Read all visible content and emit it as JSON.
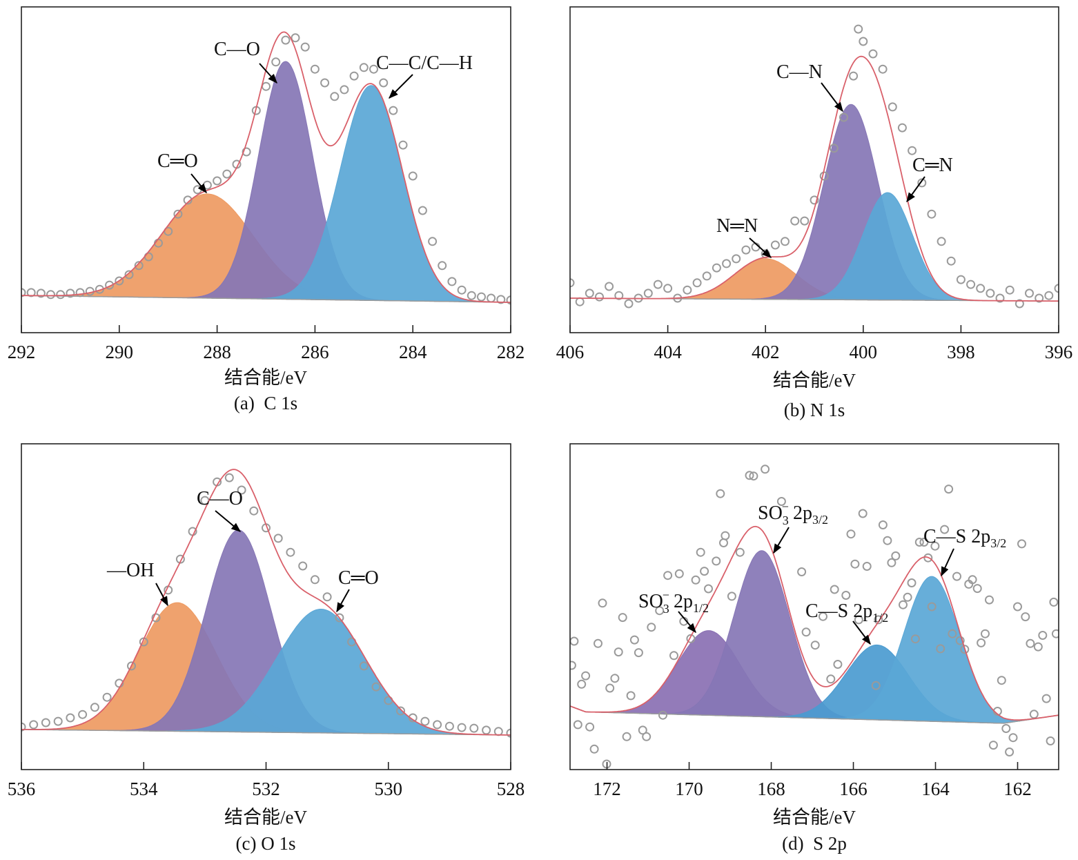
{
  "colors": {
    "orange": "#EE9A62",
    "purple": "#8676B5",
    "blue": "#5AA7D6",
    "envelope": "#D9606A",
    "points": "#9A9A9A"
  },
  "chart_data": [
    {
      "type": "scatter+area",
      "caption": "(a)  C 1s",
      "xlabel": "结合能/eV",
      "xlim": [
        292,
        282
      ],
      "ylim": [
        0,
        100
      ],
      "xticks": [
        292,
        290,
        288,
        286,
        284,
        282
      ],
      "yaxis": "no ticks, arbitrary intensity",
      "grid": false,
      "baseline": [
        [
          292,
          11.4
        ],
        [
          282,
          9.3
        ]
      ],
      "components": [
        {
          "label": "C═O",
          "center": 288.2,
          "height": 32,
          "fwhm": 2.2,
          "color": "#EE9A62"
        },
        {
          "label": "C—O",
          "center": 286.6,
          "height": 73,
          "fwhm": 1.3,
          "color": "#8676B5"
        },
        {
          "label": "C—C/C—H",
          "center": 284.85,
          "height": 66,
          "fwhm": 1.5,
          "color": "#5AA7D6"
        }
      ],
      "points": [
        [
          292.0,
          12.3
        ],
        [
          291.8,
          12.3
        ],
        [
          291.6,
          12.1
        ],
        [
          291.4,
          11.7
        ],
        [
          291.2,
          11.7
        ],
        [
          291.0,
          12.1
        ],
        [
          290.8,
          12.3
        ],
        [
          290.6,
          12.7
        ],
        [
          290.4,
          13.3
        ],
        [
          290.2,
          14.6
        ],
        [
          290.0,
          15.9
        ],
        [
          289.8,
          17.8
        ],
        [
          289.6,
          20.6
        ],
        [
          289.4,
          23.3
        ],
        [
          289.2,
          27.5
        ],
        [
          289.0,
          31.1
        ],
        [
          288.8,
          36.4
        ],
        [
          288.6,
          40.7
        ],
        [
          288.4,
          43.9
        ],
        [
          288.2,
          45.3
        ],
        [
          288.0,
          46.6
        ],
        [
          287.8,
          48.7
        ],
        [
          287.6,
          51.7
        ],
        [
          287.4,
          55.5
        ],
        [
          287.2,
          68.2
        ],
        [
          287.0,
          75.6
        ],
        [
          286.8,
          83.1
        ],
        [
          286.6,
          89.8
        ],
        [
          286.4,
          90.5
        ],
        [
          286.2,
          87.7
        ],
        [
          286.0,
          80.9
        ],
        [
          285.8,
          76.7
        ],
        [
          285.6,
          72.5
        ],
        [
          285.4,
          74.6
        ],
        [
          285.2,
          78.8
        ],
        [
          285.0,
          81.4
        ],
        [
          284.8,
          80.9
        ],
        [
          284.6,
          76.7
        ],
        [
          284.4,
          68.2
        ],
        [
          284.2,
          57.6
        ],
        [
          284.0,
          48.1
        ],
        [
          283.8,
          37.5
        ],
        [
          283.6,
          28.0
        ],
        [
          283.4,
          20.6
        ],
        [
          283.2,
          15.7
        ],
        [
          283.0,
          13.1
        ],
        [
          282.8,
          11.4
        ],
        [
          282.6,
          11.0
        ],
        [
          282.4,
          10.6
        ],
        [
          282.2,
          10.2
        ],
        [
          282.0,
          10.0
        ]
      ]
    },
    {
      "type": "scatter+area",
      "caption": "(b) N 1s",
      "xlabel": "结合能/eV",
      "xlim": [
        406,
        396
      ],
      "ylim": [
        0,
        100
      ],
      "xticks": [
        406,
        404,
        402,
        400,
        398,
        396
      ],
      "yaxis": "no ticks, arbitrary intensity",
      "grid": false,
      "baseline": [
        [
          406,
          10.6
        ],
        [
          396,
          9.7
        ]
      ],
      "components": [
        {
          "label": "N═N",
          "center": 402.0,
          "height": 12.5,
          "fwhm": 1.5,
          "color": "#EE9A62"
        },
        {
          "label": "C—N",
          "center": 400.25,
          "height": 60,
          "fwhm": 1.3,
          "color": "#8676B5"
        },
        {
          "label": "C═N",
          "center": 399.5,
          "height": 33,
          "fwhm": 1.2,
          "color": "#5AA7D6"
        }
      ],
      "points": [
        [
          406.0,
          15.3
        ],
        [
          405.8,
          9.5
        ],
        [
          405.6,
          12.1
        ],
        [
          405.4,
          11.0
        ],
        [
          405.2,
          14.2
        ],
        [
          405.0,
          11.4
        ],
        [
          404.8,
          8.9
        ],
        [
          404.6,
          10.6
        ],
        [
          404.4,
          12.1
        ],
        [
          404.2,
          14.8
        ],
        [
          404.0,
          13.6
        ],
        [
          403.8,
          10.6
        ],
        [
          403.6,
          13.1
        ],
        [
          403.4,
          15.3
        ],
        [
          403.2,
          17.4
        ],
        [
          403.0,
          19.9
        ],
        [
          402.8,
          21.2
        ],
        [
          402.6,
          22.7
        ],
        [
          402.4,
          25.4
        ],
        [
          402.2,
          26.3
        ],
        [
          402.0,
          24.2
        ],
        [
          401.8,
          26.9
        ],
        [
          401.6,
          28.0
        ],
        [
          401.4,
          34.3
        ],
        [
          401.2,
          34.3
        ],
        [
          401.0,
          40.7
        ],
        [
          400.8,
          48.1
        ],
        [
          400.6,
          56.6
        ],
        [
          400.4,
          66.1
        ],
        [
          400.2,
          78.8
        ],
        [
          400.0,
          89.4
        ],
        [
          399.8,
          85.6
        ],
        [
          399.6,
          80.9
        ],
        [
          399.4,
          69.3
        ],
        [
          399.2,
          62.9
        ],
        [
          399.0,
          55.9
        ],
        [
          398.8,
          46.0
        ],
        [
          398.6,
          36.4
        ],
        [
          398.4,
          28.0
        ],
        [
          398.2,
          22.0
        ],
        [
          398.0,
          16.3
        ],
        [
          397.8,
          14.8
        ],
        [
          397.6,
          13.6
        ],
        [
          397.4,
          12.1
        ],
        [
          397.2,
          10.6
        ],
        [
          397.0,
          13.1
        ],
        [
          396.8,
          8.9
        ],
        [
          396.6,
          12.1
        ],
        [
          396.4,
          10.6
        ],
        [
          396.2,
          11.4
        ],
        [
          396.0,
          13.6
        ],
        [
          400.1,
          93.2
        ]
      ]
    },
    {
      "type": "scatter+area",
      "caption": "(c) O 1s",
      "xlabel": "结合能/eV",
      "xlim": [
        536,
        528
      ],
      "ylim": [
        0,
        100
      ],
      "xticks": [
        536,
        534,
        532,
        530,
        528
      ],
      "yaxis": "no ticks, arbitrary intensity",
      "grid": false,
      "baseline": [
        [
          536,
          12.3
        ],
        [
          528,
          10.6
        ]
      ],
      "components": [
        {
          "label": "—OH",
          "center": 533.45,
          "height": 39.5,
          "fwhm": 1.5,
          "color": "#EE9A62"
        },
        {
          "label": "C—O",
          "center": 532.45,
          "height": 62,
          "fwhm": 1.25,
          "color": "#8676B5"
        },
        {
          "label": "C═O",
          "center": 531.1,
          "height": 38,
          "fwhm": 1.7,
          "color": "#5AA7D6"
        }
      ],
      "points": [
        [
          536.0,
          13.1
        ],
        [
          535.8,
          13.8
        ],
        [
          535.6,
          14.4
        ],
        [
          535.4,
          14.8
        ],
        [
          535.2,
          15.9
        ],
        [
          535.0,
          16.9
        ],
        [
          534.8,
          19.1
        ],
        [
          534.6,
          22.2
        ],
        [
          534.4,
          26.5
        ],
        [
          534.2,
          31.8
        ],
        [
          534.0,
          39.2
        ],
        [
          533.8,
          46.6
        ],
        [
          533.6,
          55.1
        ],
        [
          533.4,
          64.6
        ],
        [
          533.2,
          73.1
        ],
        [
          533.0,
          82.6
        ],
        [
          532.8,
          88.3
        ],
        [
          532.6,
          89.6
        ],
        [
          532.4,
          85.8
        ],
        [
          532.2,
          79.4
        ],
        [
          532.0,
          74.2
        ],
        [
          531.8,
          71.0
        ],
        [
          531.6,
          66.7
        ],
        [
          531.4,
          62.5
        ],
        [
          531.2,
          58.3
        ],
        [
          531.0,
          53.0
        ],
        [
          530.8,
          46.6
        ],
        [
          530.6,
          39.2
        ],
        [
          530.4,
          31.8
        ],
        [
          530.2,
          25.4
        ],
        [
          530.0,
          21.2
        ],
        [
          529.8,
          18.0
        ],
        [
          529.6,
          15.9
        ],
        [
          529.4,
          14.8
        ],
        [
          529.2,
          13.8
        ],
        [
          529.0,
          13.3
        ],
        [
          528.8,
          12.9
        ],
        [
          528.6,
          12.7
        ],
        [
          528.4,
          12.1
        ],
        [
          528.2,
          11.7
        ],
        [
          528.0,
          11.2
        ]
      ]
    },
    {
      "type": "scatter+area",
      "caption": "(d)  S 2p",
      "xlabel": "结合能/eV",
      "xlim": [
        172.9,
        161.0
      ],
      "ylim": [
        0,
        100
      ],
      "xticks": [
        172,
        170,
        168,
        166,
        164,
        162
      ],
      "yaxis": "no ticks, arbitrary intensity",
      "grid": false,
      "baseline": [
        [
          172.9,
          19.5
        ],
        [
          172.52,
          17.7
        ],
        [
          162.34,
          14.2
        ],
        [
          161.0,
          16.7
        ]
      ],
      "components": [
        {
          "label": {
            "pre": "SO",
            "sub": "3",
            "sup": "−",
            "post": "2p",
            "post_sub": "1/2"
          },
          "center": 169.52,
          "height": 26,
          "fwhm": 1.8,
          "color": "#8A70B3"
        },
        {
          "label": {
            "pre": "SO",
            "sub": "3",
            "sup": "−",
            "post": "2p",
            "post_sub": "3/2"
          },
          "center": 168.23,
          "height": 51,
          "fwhm": 1.6,
          "color": "#8676B5"
        },
        {
          "label": {
            "pre": "C—S 2p",
            "post_sub": "1/2"
          },
          "center": 165.42,
          "height": 23,
          "fwhm": 1.8,
          "color": "#4B9BD0"
        },
        {
          "label": {
            "pre": "C—S 2p",
            "post_sub": "3/2"
          },
          "center": 164.09,
          "height": 44.5,
          "fwhm": 1.6,
          "color": "#5AA7D6"
        }
      ],
      "points": [
        [
          168.15,
          92.2
        ],
        [
          168.53,
          90.3
        ],
        [
          168.43,
          90.1
        ],
        [
          169.24,
          84.7
        ],
        [
          167.75,
          82.3
        ],
        [
          163.68,
          86.1
        ],
        [
          165.77,
          78.6
        ],
        [
          165.28,
          75.1
        ],
        [
          166.06,
          72.3
        ],
        [
          163.78,
          73.7
        ],
        [
          165.17,
          70.3
        ],
        [
          164.39,
          69.8
        ],
        [
          164.28,
          69.8
        ],
        [
          164.01,
          68.6
        ],
        [
          161.9,
          69.3
        ],
        [
          168.76,
          66.7
        ],
        [
          169.72,
          66.7
        ],
        [
          169.12,
          71.8
        ],
        [
          169.16,
          69.6
        ],
        [
          169.34,
          64.0
        ],
        [
          169.63,
          60.9
        ],
        [
          170.52,
          59.6
        ],
        [
          170.24,
          60.1
        ],
        [
          169.84,
          58.2
        ],
        [
          164.18,
          65.0
        ],
        [
          164.97,
          65.6
        ],
        [
          165.07,
          63.5
        ],
        [
          165.96,
          63.1
        ],
        [
          165.67,
          62.4
        ],
        [
          167.26,
          60.7
        ],
        [
          163.48,
          59.3
        ],
        [
          163.1,
          58.3
        ],
        [
          163.19,
          56.9
        ],
        [
          162.98,
          55.6
        ],
        [
          164.58,
          57.3
        ],
        [
          166.46,
          55.3
        ],
        [
          166.18,
          53.5
        ],
        [
          169.53,
          55.5
        ],
        [
          168.96,
          53.2
        ],
        [
          172.11,
          51.1
        ],
        [
          170.72,
          48.8
        ],
        [
          164.68,
          52.9
        ],
        [
          164.79,
          50.6
        ],
        [
          164.09,
          50.0
        ],
        [
          162.69,
          52.1
        ],
        [
          162.0,
          50.0
        ],
        [
          161.12,
          51.4
        ],
        [
          161.81,
          46.9
        ],
        [
          171.62,
          46.7
        ],
        [
          170.13,
          45.5
        ],
        [
          166.74,
          47.0
        ],
        [
          165.87,
          46.0
        ],
        [
          165.39,
          46.0
        ],
        [
          170.92,
          43.7
        ],
        [
          172.8,
          39.4
        ],
        [
          172.22,
          38.7
        ],
        [
          171.33,
          39.8
        ],
        [
          171.72,
          36.1
        ],
        [
          171.23,
          35.9
        ],
        [
          169.96,
          40.2
        ],
        [
          167.15,
          42.2
        ],
        [
          166.93,
          38.2
        ],
        [
          163.59,
          41.7
        ],
        [
          163.4,
          39.6
        ],
        [
          163.29,
          36.9
        ],
        [
          163.88,
          37.1
        ],
        [
          162.79,
          41.7
        ],
        [
          162.89,
          38.9
        ],
        [
          164.49,
          40.1
        ],
        [
          161.69,
          38.7
        ],
        [
          161.5,
          37.7
        ],
        [
          161.39,
          41.2
        ],
        [
          161.06,
          41.7
        ],
        [
          172.86,
          32.0
        ],
        [
          172.52,
          28.8
        ],
        [
          171.81,
          28.0
        ],
        [
          172.62,
          26.2
        ],
        [
          171.93,
          25.0
        ],
        [
          171.42,
          22.7
        ],
        [
          170.37,
          35.0
        ],
        [
          166.55,
          27.8
        ],
        [
          166.38,
          32.3
        ],
        [
          165.45,
          25.8
        ],
        [
          162.39,
          27.4
        ],
        [
          161.3,
          21.8
        ],
        [
          162.49,
          17.9
        ],
        [
          161.6,
          17.0
        ],
        [
          170.64,
          16.7
        ],
        [
          172.71,
          13.8
        ],
        [
          172.42,
          13.1
        ],
        [
          171.13,
          12.1
        ],
        [
          171.52,
          10.1
        ],
        [
          171.04,
          10.1
        ],
        [
          172.31,
          6.3
        ],
        [
          162.28,
          12.6
        ],
        [
          162.11,
          9.8
        ],
        [
          162.59,
          7.5
        ],
        [
          162.2,
          5.4
        ],
        [
          161.2,
          8.8
        ],
        [
          172.01,
          1.7
        ]
      ]
    }
  ]
}
